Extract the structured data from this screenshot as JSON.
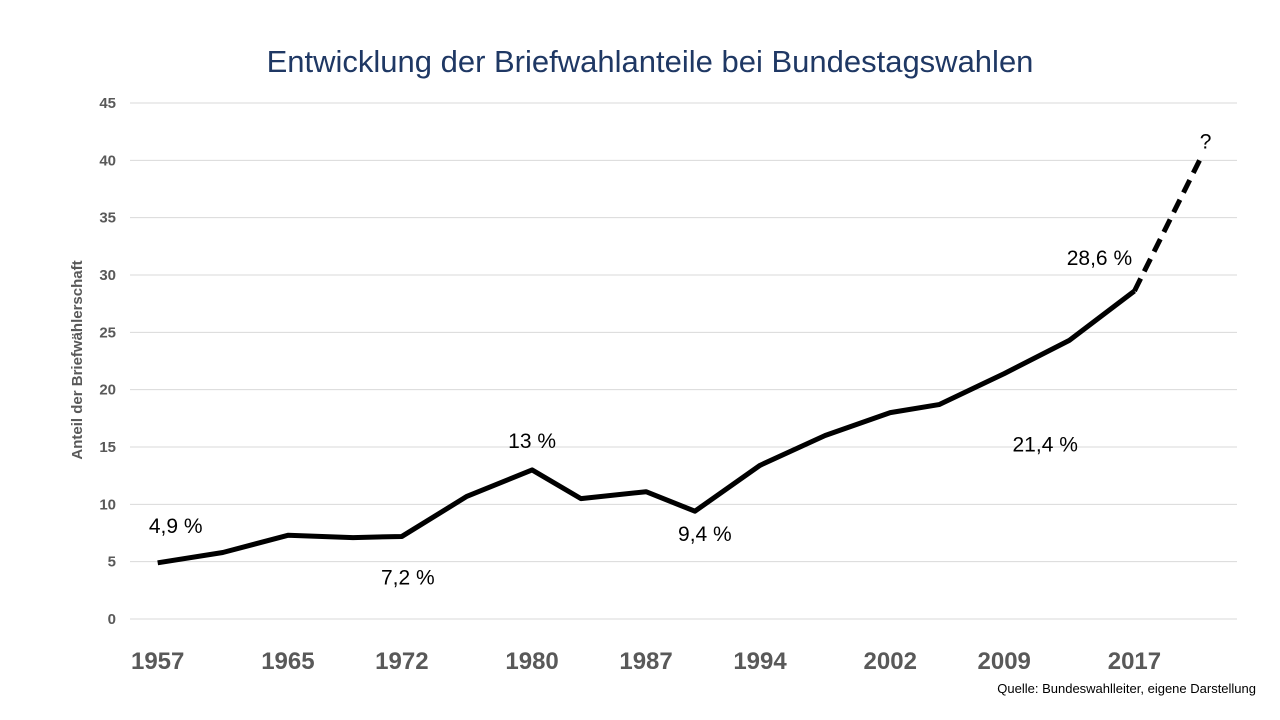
{
  "chart_data": {
    "type": "line",
    "title": "Entwicklung der Briefwahlanteile bei Bundestagswahlen",
    "xlabel": "",
    "ylabel": "Anteil der Briefwählerschaft",
    "ylim": [
      0,
      45
    ],
    "yticks": [
      "0",
      "5",
      "10",
      "15",
      "20",
      "25",
      "30",
      "35",
      "40",
      "45"
    ],
    "xtick_labels": [
      "1957",
      "1965",
      "1972",
      "1980",
      "1987",
      "1994",
      "2002",
      "2009",
      "2017"
    ],
    "grid": true,
    "x": [
      1957,
      1961,
      1965,
      1969,
      1972,
      1976,
      1980,
      1983,
      1987,
      1990,
      1994,
      1998,
      2002,
      2005,
      2009,
      2013,
      2017
    ],
    "series": [
      {
        "values": [
          4.9,
          5.8,
          7.3,
          7.1,
          7.2,
          10.7,
          13.0,
          10.5,
          11.1,
          9.4,
          13.4,
          16.0,
          18.0,
          18.7,
          21.4,
          24.3,
          28.6
        ],
        "style": "solid",
        "color": "#000000"
      },
      {
        "x": [
          2017,
          2021
        ],
        "values": [
          28.6,
          40.0
        ],
        "style": "dashed",
        "color": "#000000"
      }
    ],
    "annotations": [
      {
        "text": "4,9 %",
        "x": 1957,
        "y": 4.9
      },
      {
        "text": "7,2 %",
        "x": 1972,
        "y": 7.2
      },
      {
        "text": "13 %",
        "x": 1980,
        "y": 13.0
      },
      {
        "text": "9,4 %",
        "x": 1990,
        "y": 9.4
      },
      {
        "text": "21,4 %",
        "x": 2009,
        "y": 21.4
      },
      {
        "text": "28,6 %",
        "x": 2017,
        "y": 28.6
      },
      {
        "text": "?",
        "x": 2021,
        "y": 40.0
      }
    ],
    "source": "Quelle: Bundeswahlleiter, eigene Darstellung"
  }
}
